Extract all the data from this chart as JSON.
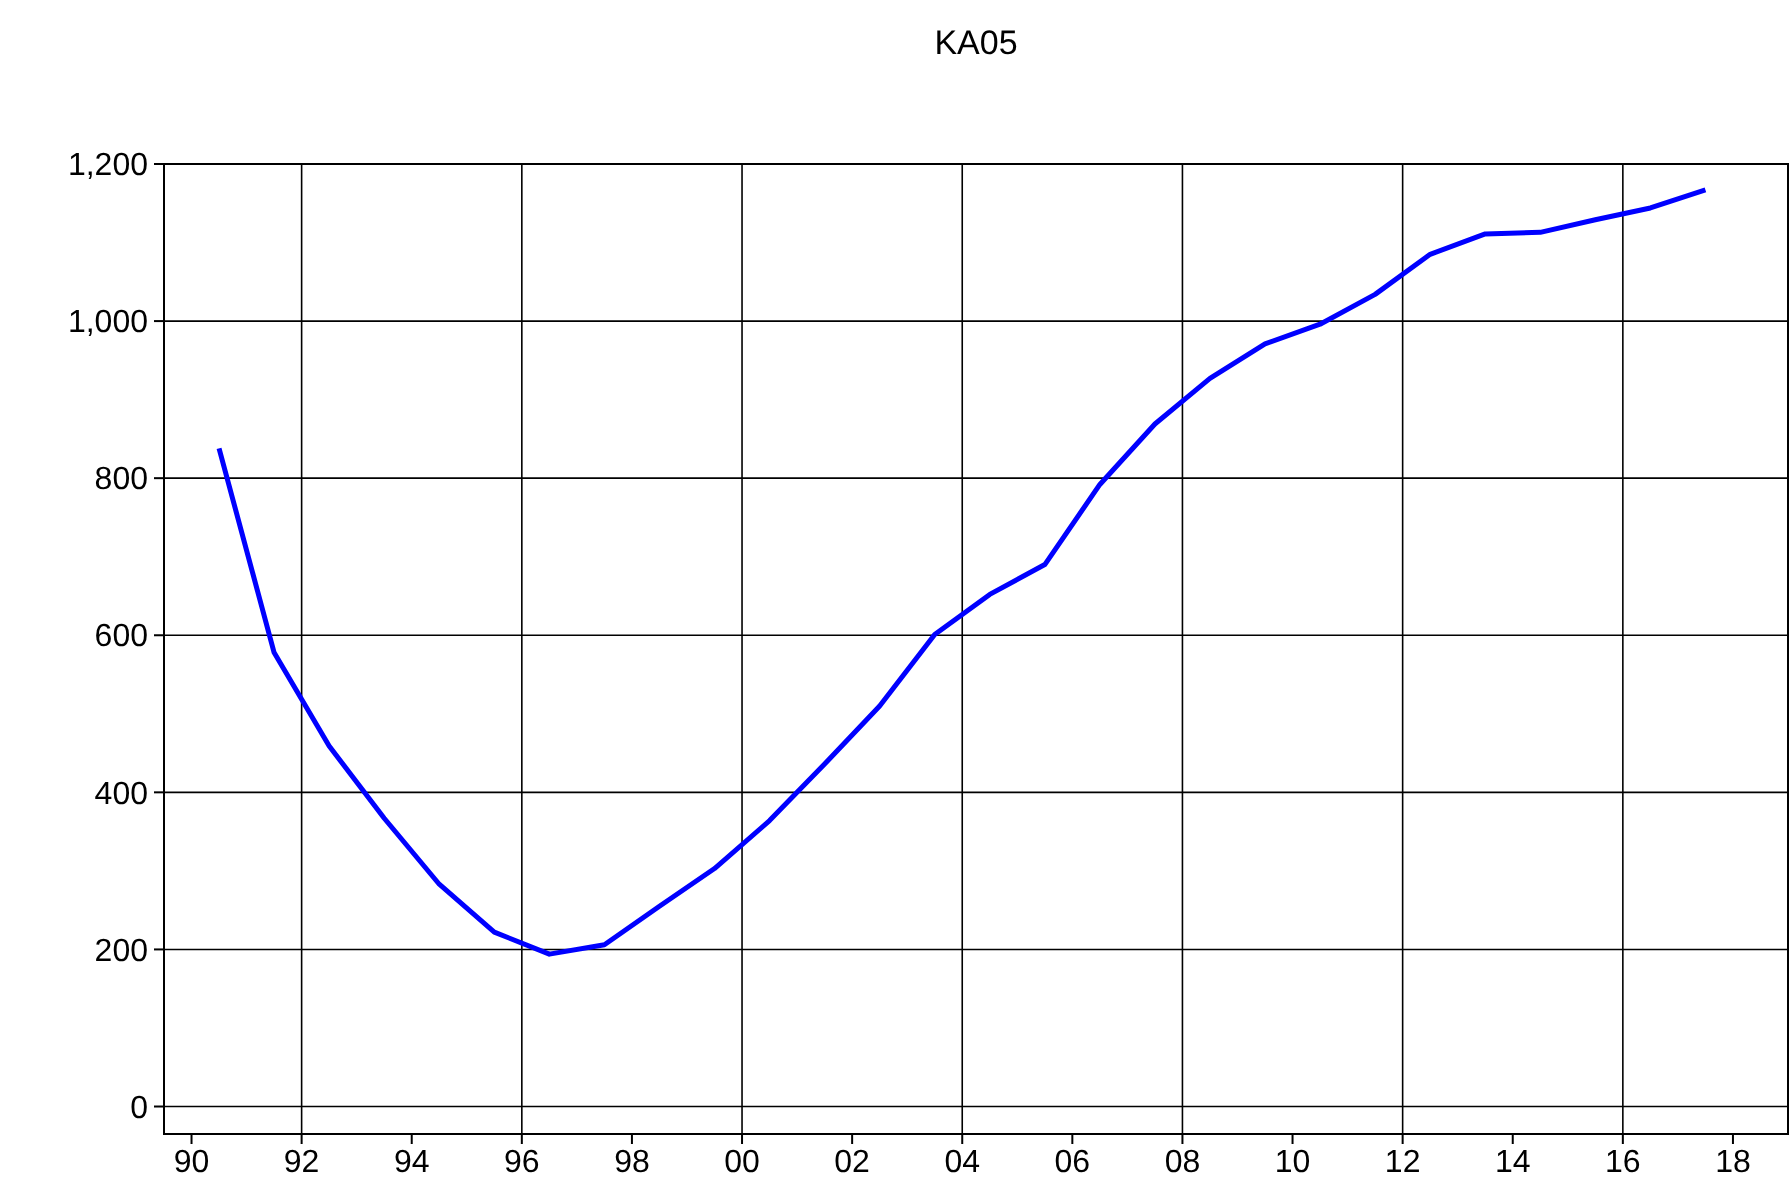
{
  "chart_data": {
    "type": "line",
    "title": "KA05",
    "x": [
      1990.5,
      1991.5,
      1992.5,
      1993.5,
      1994.5,
      1995.5,
      1996.5,
      1997.5,
      1998.5,
      1999.5,
      2000.5,
      2001.5,
      2002.5,
      2003.5,
      2004.5,
      2005.5,
      2006.5,
      2007.5,
      2008.5,
      2009.5,
      2010.5,
      2011.5,
      2012.5,
      2013.5,
      2014.5,
      2015.5,
      2016.5,
      2017.5
    ],
    "series": [
      {
        "color": "#0000ff",
        "values": [
          838,
          578,
          459,
          367,
          283,
          222,
          194,
          206,
          255,
          303,
          364,
          436,
          510,
          601,
          652,
          690,
          792,
          869,
          927,
          971,
          996,
          1034,
          1085,
          1111,
          1113,
          1129,
          1144,
          1167
        ]
      }
    ],
    "xlim": [
      1989.5,
      2019
    ],
    "xticks": [
      {
        "value": 1990,
        "label": "90"
      },
      {
        "value": 1992,
        "label": "92"
      },
      {
        "value": 1994,
        "label": "94"
      },
      {
        "value": 1996,
        "label": "96"
      },
      {
        "value": 1998,
        "label": "98"
      },
      {
        "value": 2000,
        "label": "00"
      },
      {
        "value": 2002,
        "label": "02"
      },
      {
        "value": 2004,
        "label": "04"
      },
      {
        "value": 2006,
        "label": "06"
      },
      {
        "value": 2008,
        "label": "08"
      },
      {
        "value": 2010,
        "label": "10"
      },
      {
        "value": 2012,
        "label": "12"
      },
      {
        "value": 2014,
        "label": "14"
      },
      {
        "value": 2016,
        "label": "16"
      },
      {
        "value": 2018,
        "label": "18"
      }
    ],
    "ylim": [
      -35,
      1200
    ],
    "yticks": [
      0,
      200,
      400,
      600,
      800,
      {
        "value": 1000,
        "label": "1,000"
      },
      {
        "value": 1200,
        "label": "1,200"
      }
    ],
    "grid": true,
    "marker": "none",
    "line_style": "solid"
  }
}
